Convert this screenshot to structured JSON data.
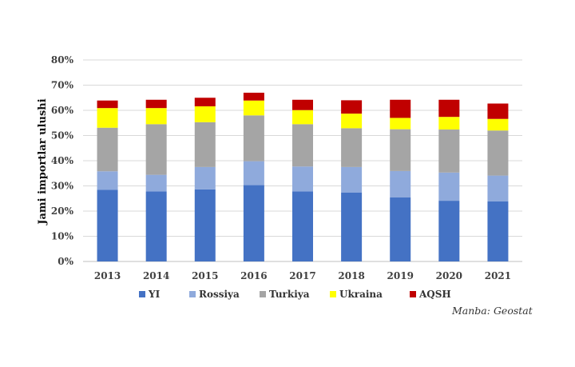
{
  "chart_data": {
    "type": "bar",
    "stacked": true,
    "title": "",
    "xlabel": "",
    "ylabel": "Jami importlar ulushi",
    "ylim": [
      0,
      80
    ],
    "yticks": [
      "0%",
      "10%",
      "20%",
      "30%",
      "40%",
      "50%",
      "60%",
      "70%",
      "80%"
    ],
    "grid": true,
    "legend_position": "bottom",
    "categories": [
      "2013",
      "2014",
      "2015",
      "2016",
      "2017",
      "2018",
      "2019",
      "2020",
      "2021"
    ],
    "series": [
      {
        "name": "YI",
        "color": "#4472C4",
        "values": [
          28.5,
          27.8,
          28.6,
          30.3,
          27.8,
          27.4,
          25.4,
          24.1,
          23.9
        ]
      },
      {
        "name": "Rossiya",
        "color": "#8FAADC",
        "values": [
          7.3,
          6.6,
          8.9,
          9.5,
          9.9,
          10.1,
          10.5,
          11.2,
          10.2
        ]
      },
      {
        "name": "Turkiya",
        "color": "#A5A5A5",
        "values": [
          17.3,
          20.1,
          17.8,
          18.2,
          16.8,
          15.4,
          16.6,
          17.1,
          17.9
        ]
      },
      {
        "name": "Ukraina",
        "color": "#FFFF00",
        "values": [
          7.8,
          6.4,
          6.3,
          5.9,
          5.6,
          5.8,
          4.5,
          5.0,
          4.6
        ]
      },
      {
        "name": "AQSH",
        "color": "#C00000",
        "values": [
          3.0,
          3.3,
          3.4,
          3.1,
          4.1,
          5.3,
          7.2,
          6.8,
          6.1
        ]
      }
    ]
  },
  "source": "Manba: Geostat"
}
